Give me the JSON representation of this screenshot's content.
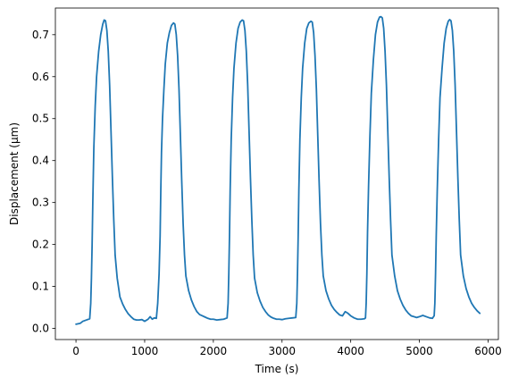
{
  "chart_data": {
    "type": "line",
    "title": "",
    "xlabel": "Time (s)",
    "ylabel": "Displacement (μm)",
    "xlim": [
      -300,
      6150
    ],
    "ylim": [
      -0.0265,
      0.7635
    ],
    "xticks": [
      0,
      1000,
      2000,
      3000,
      4000,
      5000,
      6000
    ],
    "yticks": [
      0.0,
      0.1,
      0.2,
      0.3,
      0.4,
      0.5,
      0.6,
      0.7
    ],
    "xtick_labels": [
      "0",
      "1000",
      "2000",
      "3000",
      "4000",
      "5000",
      "6000"
    ],
    "ytick_labels": [
      "0.0",
      "0.1",
      "0.2",
      "0.3",
      "0.4",
      "0.5",
      "0.6",
      "0.7"
    ],
    "grid": false,
    "legend": "none",
    "series": [
      {
        "color": "#1f77b4",
        "x": [
          0,
          60,
          100,
          150,
          200,
          215,
          225,
          235,
          245,
          260,
          280,
          300,
          330,
          360,
          390,
          410,
          430,
          450,
          470,
          490,
          510,
          530,
          550,
          570,
          600,
          640,
          680,
          720,
          760,
          800,
          840,
          880,
          920,
          960,
          1000,
          1050,
          1080,
          1110,
          1140,
          1170,
          1190,
          1210,
          1225,
          1235,
          1245,
          1260,
          1280,
          1300,
          1330,
          1360,
          1390,
          1420,
          1440,
          1460,
          1480,
          1500,
          1520,
          1540,
          1560,
          1580,
          1600,
          1640,
          1680,
          1720,
          1760,
          1800,
          1840,
          1880,
          1920,
          1960,
          2000,
          2050,
          2100,
          2150,
          2200,
          2215,
          2225,
          2235,
          2245,
          2260,
          2280,
          2300,
          2330,
          2360,
          2390,
          2420,
          2440,
          2460,
          2480,
          2500,
          2520,
          2540,
          2560,
          2580,
          2600,
          2640,
          2680,
          2720,
          2760,
          2800,
          2840,
          2880,
          2920,
          2960,
          3000,
          3050,
          3100,
          3150,
          3200,
          3215,
          3225,
          3235,
          3245,
          3260,
          3280,
          3300,
          3330,
          3360,
          3390,
          3420,
          3440,
          3460,
          3480,
          3500,
          3520,
          3540,
          3560,
          3580,
          3600,
          3640,
          3680,
          3720,
          3760,
          3800,
          3840,
          3880,
          3920,
          3960,
          4000,
          4050,
          4100,
          4150,
          4200,
          4215,
          4225,
          4235,
          4245,
          4260,
          4280,
          4300,
          4330,
          4360,
          4390,
          4420,
          4440,
          4460,
          4480,
          4500,
          4520,
          4540,
          4560,
          4580,
          4600,
          4640,
          4680,
          4720,
          4760,
          4800,
          4840,
          4880,
          4920,
          4960,
          5000,
          5050,
          5100,
          5150,
          5190,
          5205,
          5215,
          5225,
          5235,
          5245,
          5260,
          5280,
          5300,
          5330,
          5360,
          5390,
          5420,
          5440,
          5460,
          5480,
          5500,
          5520,
          5540,
          5560,
          5580,
          5600,
          5640,
          5680,
          5720,
          5760,
          5800,
          5840,
          5880
        ],
        "y": [
          0.01,
          0.012,
          0.017,
          0.02,
          0.023,
          0.06,
          0.12,
          0.2,
          0.3,
          0.43,
          0.53,
          0.6,
          0.66,
          0.7,
          0.725,
          0.735,
          0.733,
          0.71,
          0.66,
          0.58,
          0.47,
          0.36,
          0.26,
          0.175,
          0.12,
          0.075,
          0.058,
          0.045,
          0.035,
          0.028,
          0.022,
          0.02,
          0.02,
          0.021,
          0.017,
          0.022,
          0.028,
          0.022,
          0.025,
          0.024,
          0.06,
          0.13,
          0.22,
          0.33,
          0.42,
          0.5,
          0.57,
          0.63,
          0.68,
          0.705,
          0.722,
          0.728,
          0.725,
          0.7,
          0.65,
          0.57,
          0.46,
          0.35,
          0.25,
          0.175,
          0.125,
          0.09,
          0.068,
          0.052,
          0.04,
          0.033,
          0.03,
          0.027,
          0.024,
          0.022,
          0.022,
          0.02,
          0.021,
          0.022,
          0.025,
          0.06,
          0.13,
          0.22,
          0.33,
          0.45,
          0.55,
          0.62,
          0.68,
          0.715,
          0.73,
          0.735,
          0.733,
          0.71,
          0.66,
          0.58,
          0.47,
          0.36,
          0.26,
          0.175,
          0.12,
          0.085,
          0.065,
          0.05,
          0.04,
          0.032,
          0.027,
          0.024,
          0.022,
          0.022,
          0.021,
          0.023,
          0.024,
          0.025,
          0.026,
          0.06,
          0.13,
          0.22,
          0.33,
          0.45,
          0.55,
          0.62,
          0.68,
          0.715,
          0.728,
          0.732,
          0.73,
          0.705,
          0.65,
          0.57,
          0.46,
          0.35,
          0.25,
          0.175,
          0.125,
          0.09,
          0.07,
          0.055,
          0.045,
          0.038,
          0.032,
          0.03,
          0.04,
          0.036,
          0.03,
          0.025,
          0.022,
          0.022,
          0.023,
          0.025,
          0.06,
          0.13,
          0.23,
          0.34,
          0.46,
          0.56,
          0.64,
          0.7,
          0.73,
          0.742,
          0.743,
          0.74,
          0.715,
          0.66,
          0.58,
          0.47,
          0.36,
          0.26,
          0.175,
          0.125,
          0.09,
          0.07,
          0.055,
          0.044,
          0.036,
          0.03,
          0.028,
          0.026,
          0.028,
          0.031,
          0.028,
          0.025,
          0.024,
          0.028,
          0.03,
          0.06,
          0.13,
          0.22,
          0.33,
          0.45,
          0.55,
          0.62,
          0.68,
          0.715,
          0.732,
          0.736,
          0.733,
          0.71,
          0.66,
          0.58,
          0.47,
          0.36,
          0.26,
          0.175,
          0.125,
          0.095,
          0.075,
          0.06,
          0.05,
          0.042,
          0.036
        ]
      }
    ]
  }
}
